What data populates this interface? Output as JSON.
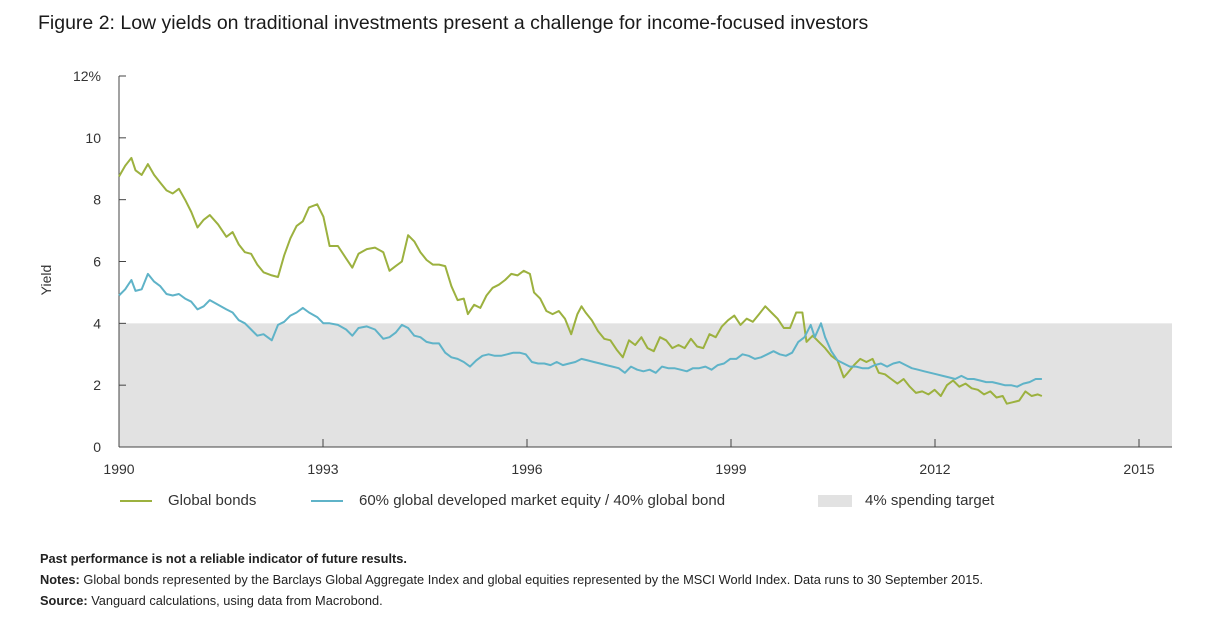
{
  "title": "Figure 2: Low yields on traditional investments present a challenge for income-focused investors",
  "chart_data": {
    "type": "line",
    "ylabel": "Yield",
    "ylim": [
      0,
      12
    ],
    "yticks": [
      "0",
      "2",
      "4",
      "6",
      "8",
      "10",
      "12%"
    ],
    "xticks": [
      "1990",
      "1993",
      "1996",
      "1999",
      "2012",
      "2015"
    ],
    "xrange": [
      1990.0,
      2015.5
    ],
    "grid": false,
    "legend_position": "bottom",
    "band": {
      "name": "4% spending target",
      "from": 0,
      "to": 4,
      "color": "#e2e2e2"
    },
    "series": [
      {
        "name": "Global bonds",
        "color": "#9cb13f",
        "points": [
          [
            1990.0,
            8.75
          ],
          [
            1990.15,
            9.1
          ],
          [
            1990.3,
            9.35
          ],
          [
            1990.4,
            8.95
          ],
          [
            1990.55,
            8.8
          ],
          [
            1990.7,
            9.15
          ],
          [
            1990.85,
            8.8
          ],
          [
            1991.0,
            8.55
          ],
          [
            1991.15,
            8.3
          ],
          [
            1991.3,
            8.2
          ],
          [
            1991.45,
            8.35
          ],
          [
            1991.6,
            8.0
          ],
          [
            1991.75,
            7.6
          ],
          [
            1991.9,
            7.1
          ],
          [
            1992.05,
            7.35
          ],
          [
            1992.2,
            7.5
          ],
          [
            1992.4,
            7.2
          ],
          [
            1992.6,
            6.8
          ],
          [
            1992.75,
            6.95
          ],
          [
            1992.9,
            6.55
          ],
          [
            1993.05,
            6.3
          ],
          [
            1993.2,
            6.25
          ],
          [
            1993.35,
            5.9
          ],
          [
            1993.5,
            5.65
          ],
          [
            1993.7,
            5.55
          ],
          [
            1993.85,
            5.5
          ],
          [
            1994.0,
            6.2
          ],
          [
            1994.15,
            6.75
          ],
          [
            1994.3,
            7.15
          ],
          [
            1994.45,
            7.3
          ],
          [
            1994.6,
            7.75
          ],
          [
            1994.8,
            7.85
          ],
          [
            1994.95,
            7.45
          ],
          [
            1995.1,
            6.5
          ],
          [
            1995.3,
            6.5
          ],
          [
            1995.5,
            6.1
          ],
          [
            1995.65,
            5.8
          ],
          [
            1995.8,
            6.25
          ],
          [
            1996.0,
            6.4
          ],
          [
            1996.2,
            6.45
          ],
          [
            1996.4,
            6.3
          ],
          [
            1996.55,
            5.7
          ],
          [
            1996.7,
            5.85
          ],
          [
            1996.85,
            6.0
          ],
          [
            1997.0,
            6.85
          ],
          [
            1997.15,
            6.65
          ],
          [
            1997.3,
            6.3
          ],
          [
            1997.45,
            6.05
          ],
          [
            1997.6,
            5.9
          ],
          [
            1997.75,
            5.9
          ],
          [
            1997.9,
            5.85
          ],
          [
            1998.05,
            5.2
          ],
          [
            1998.2,
            4.75
          ],
          [
            1998.35,
            4.8
          ],
          [
            1998.45,
            4.3
          ],
          [
            1998.6,
            4.6
          ],
          [
            1998.75,
            4.5
          ],
          [
            1998.9,
            4.9
          ],
          [
            1999.05,
            5.15
          ],
          [
            1999.2,
            5.25
          ],
          [
            1999.35,
            5.4
          ],
          [
            1999.5,
            5.6
          ],
          [
            1999.65,
            5.55
          ],
          [
            1999.8,
            5.7
          ],
          [
            1999.95,
            5.6
          ],
          [
            2000.05,
            5.0
          ],
          [
            2000.2,
            4.8
          ],
          [
            2000.35,
            4.4
          ],
          [
            2000.5,
            4.3
          ],
          [
            2000.65,
            4.4
          ],
          [
            2000.8,
            4.15
          ],
          [
            2000.95,
            3.65
          ],
          [
            2001.1,
            4.3
          ],
          [
            2001.2,
            4.55
          ],
          [
            2001.3,
            4.35
          ],
          [
            2001.45,
            4.1
          ],
          [
            2001.6,
            3.75
          ],
          [
            2001.75,
            3.5
          ],
          [
            2001.9,
            3.45
          ],
          [
            2002.05,
            3.15
          ],
          [
            2002.2,
            2.9
          ],
          [
            2002.35,
            3.45
          ],
          [
            2002.5,
            3.3
          ],
          [
            2002.65,
            3.55
          ],
          [
            2002.8,
            3.2
          ],
          [
            2002.95,
            3.1
          ],
          [
            2003.1,
            3.55
          ],
          [
            2003.25,
            3.45
          ],
          [
            2003.4,
            3.2
          ],
          [
            2003.55,
            3.3
          ],
          [
            2003.7,
            3.2
          ],
          [
            2003.85,
            3.5
          ],
          [
            2004.0,
            3.25
          ],
          [
            2004.15,
            3.2
          ],
          [
            2004.3,
            3.65
          ],
          [
            2004.45,
            3.55
          ],
          [
            2004.6,
            3.9
          ],
          [
            2004.75,
            4.1
          ],
          [
            2004.9,
            4.25
          ],
          [
            2005.05,
            3.95
          ],
          [
            2005.2,
            4.15
          ],
          [
            2005.35,
            4.05
          ],
          [
            2005.5,
            4.3
          ],
          [
            2005.65,
            4.55
          ],
          [
            2005.8,
            4.35
          ],
          [
            2005.95,
            4.15
          ],
          [
            2006.1,
            3.85
          ],
          [
            2006.25,
            3.85
          ],
          [
            2006.4,
            4.35
          ],
          [
            2006.55,
            4.35
          ],
          [
            2006.65,
            3.4
          ],
          [
            2006.8,
            3.6
          ],
          [
            2006.95,
            3.4
          ],
          [
            2007.1,
            3.2
          ],
          [
            2007.25,
            2.95
          ],
          [
            2007.4,
            2.8
          ],
          [
            2007.55,
            2.25
          ],
          [
            2007.65,
            2.4
          ],
          [
            2007.8,
            2.65
          ],
          [
            2007.95,
            2.85
          ],
          [
            2008.1,
            2.75
          ],
          [
            2008.25,
            2.85
          ],
          [
            2008.4,
            2.4
          ],
          [
            2008.55,
            2.35
          ],
          [
            2008.7,
            2.2
          ],
          [
            2008.85,
            2.05
          ],
          [
            2009.0,
            2.2
          ],
          [
            2009.15,
            1.95
          ],
          [
            2009.3,
            1.75
          ],
          [
            2009.45,
            1.8
          ],
          [
            2009.6,
            1.7
          ],
          [
            2009.75,
            1.85
          ],
          [
            2009.9,
            1.65
          ],
          [
            2010.05,
            2.0
          ],
          [
            2010.2,
            2.15
          ],
          [
            2010.35,
            1.95
          ],
          [
            2010.5,
            2.05
          ],
          [
            2010.65,
            1.9
          ],
          [
            2010.8,
            1.85
          ],
          [
            2010.95,
            1.7
          ],
          [
            2011.1,
            1.8
          ],
          [
            2011.25,
            1.6
          ],
          [
            2011.4,
            1.65
          ],
          [
            2011.5,
            1.4
          ],
          [
            2011.65,
            1.45
          ],
          [
            2011.8,
            1.5
          ],
          [
            2011.95,
            1.8
          ],
          [
            2012.1,
            1.65
          ],
          [
            2012.25,
            1.7
          ],
          [
            2012.35,
            1.65
          ]
        ]
      },
      {
        "name": "60% global developed market equity / 40% global bond",
        "color": "#5fb3c8",
        "points": [
          [
            1990.0,
            4.9
          ],
          [
            1990.15,
            5.1
          ],
          [
            1990.3,
            5.4
          ],
          [
            1990.4,
            5.05
          ],
          [
            1990.55,
            5.1
          ],
          [
            1990.7,
            5.6
          ],
          [
            1990.85,
            5.35
          ],
          [
            1991.0,
            5.2
          ],
          [
            1991.15,
            4.95
          ],
          [
            1991.3,
            4.9
          ],
          [
            1991.45,
            4.95
          ],
          [
            1991.6,
            4.8
          ],
          [
            1991.75,
            4.7
          ],
          [
            1991.9,
            4.45
          ],
          [
            1992.05,
            4.55
          ],
          [
            1992.2,
            4.75
          ],
          [
            1992.4,
            4.6
          ],
          [
            1992.6,
            4.45
          ],
          [
            1992.75,
            4.35
          ],
          [
            1992.9,
            4.1
          ],
          [
            1993.05,
            4.0
          ],
          [
            1993.2,
            3.8
          ],
          [
            1993.35,
            3.6
          ],
          [
            1993.5,
            3.65
          ],
          [
            1993.7,
            3.45
          ],
          [
            1993.85,
            3.95
          ],
          [
            1994.0,
            4.05
          ],
          [
            1994.15,
            4.25
          ],
          [
            1994.3,
            4.35
          ],
          [
            1994.45,
            4.5
          ],
          [
            1994.6,
            4.35
          ],
          [
            1994.8,
            4.2
          ],
          [
            1994.95,
            4.0
          ],
          [
            1995.1,
            4.0
          ],
          [
            1995.3,
            3.95
          ],
          [
            1995.5,
            3.8
          ],
          [
            1995.65,
            3.6
          ],
          [
            1995.8,
            3.85
          ],
          [
            1996.0,
            3.9
          ],
          [
            1996.2,
            3.8
          ],
          [
            1996.4,
            3.5
          ],
          [
            1996.55,
            3.55
          ],
          [
            1996.7,
            3.7
          ],
          [
            1996.85,
            3.95
          ],
          [
            1997.0,
            3.85
          ],
          [
            1997.15,
            3.6
          ],
          [
            1997.3,
            3.55
          ],
          [
            1997.45,
            3.4
          ],
          [
            1997.6,
            3.35
          ],
          [
            1997.75,
            3.35
          ],
          [
            1997.9,
            3.05
          ],
          [
            1998.05,
            2.9
          ],
          [
            1998.2,
            2.85
          ],
          [
            1998.35,
            2.75
          ],
          [
            1998.5,
            2.6
          ],
          [
            1998.65,
            2.8
          ],
          [
            1998.8,
            2.95
          ],
          [
            1998.95,
            3.0
          ],
          [
            1999.1,
            2.95
          ],
          [
            1999.25,
            2.95
          ],
          [
            1999.4,
            3.0
          ],
          [
            1999.55,
            3.05
          ],
          [
            1999.7,
            3.05
          ],
          [
            1999.85,
            3.0
          ],
          [
            2000.0,
            2.75
          ],
          [
            2000.15,
            2.7
          ],
          [
            2000.3,
            2.7
          ],
          [
            2000.45,
            2.65
          ],
          [
            2000.6,
            2.75
          ],
          [
            2000.75,
            2.65
          ],
          [
            2000.9,
            2.7
          ],
          [
            2001.05,
            2.75
          ],
          [
            2001.2,
            2.85
          ],
          [
            2001.35,
            2.8
          ],
          [
            2001.5,
            2.75
          ],
          [
            2001.65,
            2.7
          ],
          [
            2001.8,
            2.65
          ],
          [
            2001.95,
            2.6
          ],
          [
            2002.1,
            2.55
          ],
          [
            2002.25,
            2.4
          ],
          [
            2002.4,
            2.6
          ],
          [
            2002.55,
            2.5
          ],
          [
            2002.7,
            2.45
          ],
          [
            2002.85,
            2.5
          ],
          [
            2003.0,
            2.4
          ],
          [
            2003.15,
            2.6
          ],
          [
            2003.3,
            2.55
          ],
          [
            2003.45,
            2.55
          ],
          [
            2003.6,
            2.5
          ],
          [
            2003.75,
            2.45
          ],
          [
            2003.9,
            2.55
          ],
          [
            2004.05,
            2.55
          ],
          [
            2004.2,
            2.6
          ],
          [
            2004.35,
            2.5
          ],
          [
            2004.5,
            2.65
          ],
          [
            2004.65,
            2.7
          ],
          [
            2004.8,
            2.85
          ],
          [
            2004.95,
            2.85
          ],
          [
            2005.1,
            3.0
          ],
          [
            2005.25,
            2.95
          ],
          [
            2005.4,
            2.85
          ],
          [
            2005.55,
            2.9
          ],
          [
            2005.7,
            3.0
          ],
          [
            2005.85,
            3.1
          ],
          [
            2006.0,
            3.0
          ],
          [
            2006.15,
            2.95
          ],
          [
            2006.3,
            3.05
          ],
          [
            2006.45,
            3.4
          ],
          [
            2006.6,
            3.55
          ],
          [
            2006.75,
            3.95
          ],
          [
            2006.85,
            3.55
          ],
          [
            2007.0,
            4.0
          ],
          [
            2007.1,
            3.55
          ],
          [
            2007.25,
            3.1
          ],
          [
            2007.4,
            2.8
          ],
          [
            2007.55,
            2.7
          ],
          [
            2007.7,
            2.6
          ],
          [
            2007.85,
            2.6
          ],
          [
            2008.0,
            2.55
          ],
          [
            2008.15,
            2.55
          ],
          [
            2008.3,
            2.65
          ],
          [
            2008.45,
            2.7
          ],
          [
            2008.6,
            2.6
          ],
          [
            2008.75,
            2.7
          ],
          [
            2008.9,
            2.75
          ],
          [
            2009.05,
            2.65
          ],
          [
            2009.2,
            2.55
          ],
          [
            2009.35,
            2.5
          ],
          [
            2009.5,
            2.45
          ],
          [
            2009.65,
            2.4
          ],
          [
            2009.8,
            2.35
          ],
          [
            2009.95,
            2.3
          ],
          [
            2010.1,
            2.25
          ],
          [
            2010.25,
            2.2
          ],
          [
            2010.4,
            2.3
          ],
          [
            2010.55,
            2.2
          ],
          [
            2010.7,
            2.2
          ],
          [
            2010.85,
            2.15
          ],
          [
            2011.0,
            2.1
          ],
          [
            2011.15,
            2.1
          ],
          [
            2011.3,
            2.05
          ],
          [
            2011.45,
            2.0
          ],
          [
            2011.6,
            2.0
          ],
          [
            2011.75,
            1.95
          ],
          [
            2011.9,
            2.05
          ],
          [
            2012.05,
            2.1
          ],
          [
            2012.2,
            2.2
          ],
          [
            2012.35,
            2.2
          ]
        ]
      }
    ]
  },
  "notes": {
    "disclaimer": "Past performance is not a reliable indicator of future results.",
    "notes_label": "Notes:",
    "notes_text": " Global bonds represented by the Barclays Global Aggregate Index and global equities represented by the MSCI World Index. Data runs to 30 September 2015.",
    "source_label": "Source:",
    "source_text": " Vanguard calculations, using data from Macrobond."
  }
}
